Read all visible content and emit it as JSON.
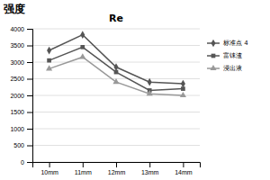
{
  "chart_data": {
    "type": "line",
    "title": "Re",
    "ylabel": "强度",
    "categories": [
      "10mm",
      "11mm",
      "12mm",
      "13mm",
      "14mm"
    ],
    "series": [
      {
        "name": "标准点 4",
        "color": "#555555",
        "marker": "diamond",
        "values": [
          3350,
          3820,
          2850,
          2400,
          2350
        ]
      },
      {
        "name": "富铼渣",
        "color": "#555555",
        "marker": "square",
        "values": [
          3050,
          3450,
          2700,
          2150,
          2200
        ]
      },
      {
        "name": "浸出液",
        "color": "#999999",
        "marker": "triangle",
        "values": [
          2800,
          3150,
          2400,
          2050,
          2000
        ]
      }
    ],
    "ylim": [
      0,
      4000
    ],
    "yticks": [
      0,
      500,
      1000,
      1500,
      2000,
      2500,
      3000,
      3500,
      4000
    ],
    "grid": true,
    "legend": "right"
  }
}
